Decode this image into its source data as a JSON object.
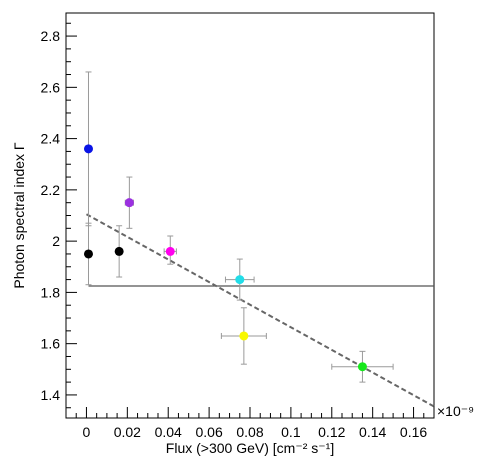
{
  "chart_data": {
    "type": "scatter",
    "xlabel": "Flux (>300 GeV) [cm⁻² s⁻¹]",
    "ylabel": "Photon spectral index Γ",
    "x_exponent_label": "×10⁻⁹",
    "xlim": [
      -0.01,
      0.17
    ],
    "ylim": [
      1.31,
      2.89
    ],
    "x_ticks": [
      0,
      0.02,
      0.04,
      0.06,
      0.08,
      0.1,
      0.12,
      0.14,
      0.16
    ],
    "x_tick_labels": [
      "0",
      "0.02",
      "0.04",
      "0.06",
      "0.08",
      "0.1",
      "0.12",
      "0.14",
      "0.16"
    ],
    "y_ticks": [
      1.4,
      1.6,
      1.8,
      2.0,
      2.2,
      2.4,
      2.6,
      2.8
    ],
    "y_tick_labels": [
      "1.4",
      "1.6",
      "1.8",
      "2",
      "2.2",
      "2.4",
      "2.6",
      "2.8"
    ],
    "grid": false,
    "points": [
      {
        "x": 0.001,
        "y": 2.36,
        "xerr": 0.0,
        "yerr_lo": 0.3,
        "yerr_hi": 0.3,
        "color": "#0a14e6"
      },
      {
        "x": 0.001,
        "y": 1.95,
        "xerr": 0.0,
        "yerr_lo": 0.12,
        "yerr_hi": 0.12,
        "color": "#000000"
      },
      {
        "x": 0.016,
        "y": 1.96,
        "xerr": 0.0,
        "yerr_lo": 0.1,
        "yerr_hi": 0.1,
        "color": "#000000"
      },
      {
        "x": 0.021,
        "y": 2.15,
        "xerr": 0.002,
        "yerr_lo": 0.1,
        "yerr_hi": 0.1,
        "color": "#9b30e0"
      },
      {
        "x": 0.041,
        "y": 1.96,
        "xerr": 0.003,
        "yerr_lo": 0.05,
        "yerr_hi": 0.06,
        "color": "#ff00ee"
      },
      {
        "x": 0.075,
        "y": 1.85,
        "xerr": 0.007,
        "yerr_lo": 0.08,
        "yerr_hi": 0.08,
        "color": "#22dde8"
      },
      {
        "x": 0.077,
        "y": 1.63,
        "xerr": 0.011,
        "yerr_lo": 0.11,
        "yerr_hi": 0.11,
        "color": "#f8f800"
      },
      {
        "x": 0.135,
        "y": 1.51,
        "xerr": 0.015,
        "yerr_lo": 0.06,
        "yerr_hi": 0.06,
        "color": "#16e81c"
      }
    ],
    "constant_fit": {
      "y": 1.825,
      "x_start": 0.001,
      "x_end": 0.17,
      "color": "#555555"
    },
    "linear_fit": {
      "x0": 0.0,
      "y0": 2.105,
      "x1": 0.17,
      "y1": 1.355,
      "color": "#666666",
      "style": "dashed"
    }
  }
}
